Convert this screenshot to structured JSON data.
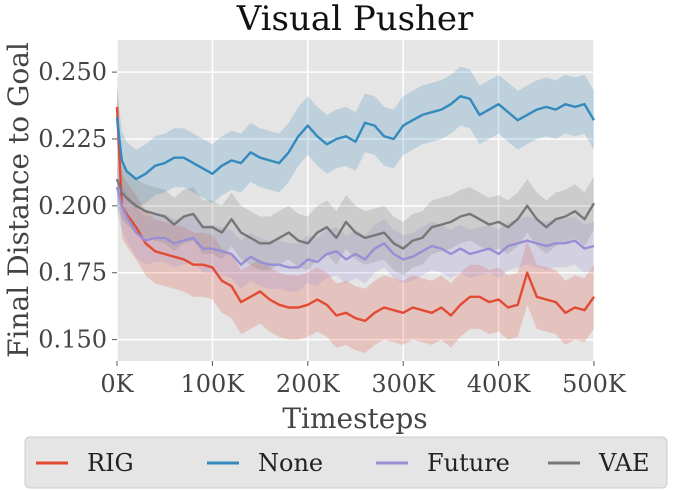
{
  "chart_data": {
    "type": "line",
    "title": "Visual Pusher",
    "xlabel": "Timesteps",
    "ylabel": "Final Distance to Goal",
    "xlim": [
      0,
      500000
    ],
    "ylim": [
      0.142,
      0.262
    ],
    "xticks": [
      0,
      100000,
      200000,
      300000,
      400000,
      500000
    ],
    "xtick_labels": [
      "0K",
      "100K",
      "200K",
      "300K",
      "400K",
      "500K"
    ],
    "yticks": [
      0.15,
      0.175,
      0.2,
      0.225,
      0.25
    ],
    "ytick_labels": [
      "0.150",
      "0.175",
      "0.200",
      "0.225",
      "0.250"
    ],
    "grid": true,
    "legend_position": "bottom",
    "x": [
      0,
      5000,
      10000,
      20000,
      30000,
      40000,
      50000,
      60000,
      70000,
      80000,
      90000,
      100000,
      110000,
      120000,
      130000,
      140000,
      150000,
      160000,
      170000,
      180000,
      190000,
      200000,
      210000,
      220000,
      230000,
      240000,
      250000,
      260000,
      270000,
      280000,
      290000,
      300000,
      310000,
      320000,
      330000,
      340000,
      350000,
      360000,
      370000,
      380000,
      390000,
      400000,
      410000,
      420000,
      430000,
      440000,
      450000,
      460000,
      470000,
      480000,
      490000,
      500000
    ],
    "series": [
      {
        "name": "RIG",
        "color": "#e24a33",
        "band": 0.012,
        "values": [
          0.237,
          0.2,
          0.197,
          0.192,
          0.186,
          0.183,
          0.182,
          0.181,
          0.18,
          0.178,
          0.178,
          0.177,
          0.172,
          0.17,
          0.164,
          0.166,
          0.168,
          0.165,
          0.163,
          0.162,
          0.162,
          0.163,
          0.165,
          0.163,
          0.159,
          0.16,
          0.158,
          0.157,
          0.16,
          0.162,
          0.161,
          0.16,
          0.162,
          0.161,
          0.16,
          0.162,
          0.159,
          0.163,
          0.166,
          0.166,
          0.164,
          0.165,
          0.162,
          0.163,
          0.175,
          0.166,
          0.165,
          0.164,
          0.16,
          0.162,
          0.161,
          0.166
        ]
      },
      {
        "name": "None",
        "color": "#348abd",
        "band": 0.011,
        "values": [
          0.233,
          0.217,
          0.213,
          0.21,
          0.212,
          0.215,
          0.216,
          0.218,
          0.218,
          0.216,
          0.214,
          0.212,
          0.215,
          0.217,
          0.216,
          0.22,
          0.218,
          0.217,
          0.216,
          0.22,
          0.226,
          0.23,
          0.226,
          0.223,
          0.225,
          0.226,
          0.224,
          0.231,
          0.23,
          0.226,
          0.225,
          0.23,
          0.232,
          0.234,
          0.235,
          0.236,
          0.238,
          0.241,
          0.24,
          0.234,
          0.236,
          0.238,
          0.235,
          0.232,
          0.234,
          0.236,
          0.237,
          0.236,
          0.238,
          0.237,
          0.238,
          0.232
        ]
      },
      {
        "name": "Future",
        "color": "#988ed5",
        "band": 0.009,
        "values": [
          0.207,
          0.2,
          0.196,
          0.19,
          0.187,
          0.188,
          0.188,
          0.186,
          0.187,
          0.188,
          0.184,
          0.184,
          0.183,
          0.182,
          0.178,
          0.181,
          0.179,
          0.178,
          0.178,
          0.177,
          0.177,
          0.18,
          0.179,
          0.182,
          0.183,
          0.18,
          0.182,
          0.18,
          0.184,
          0.186,
          0.182,
          0.18,
          0.181,
          0.183,
          0.185,
          0.184,
          0.182,
          0.184,
          0.182,
          0.183,
          0.184,
          0.182,
          0.185,
          0.186,
          0.187,
          0.186,
          0.185,
          0.186,
          0.186,
          0.187,
          0.184,
          0.185
        ]
      },
      {
        "name": "VAE",
        "color": "#777777",
        "band": 0.01,
        "values": [
          0.21,
          0.205,
          0.203,
          0.2,
          0.198,
          0.197,
          0.196,
          0.193,
          0.196,
          0.197,
          0.192,
          0.192,
          0.19,
          0.195,
          0.19,
          0.188,
          0.186,
          0.186,
          0.188,
          0.19,
          0.187,
          0.186,
          0.19,
          0.192,
          0.188,
          0.194,
          0.19,
          0.188,
          0.189,
          0.19,
          0.186,
          0.184,
          0.187,
          0.188,
          0.192,
          0.193,
          0.194,
          0.196,
          0.197,
          0.195,
          0.193,
          0.194,
          0.192,
          0.195,
          0.2,
          0.195,
          0.192,
          0.195,
          0.196,
          0.198,
          0.195,
          0.201
        ]
      }
    ]
  }
}
